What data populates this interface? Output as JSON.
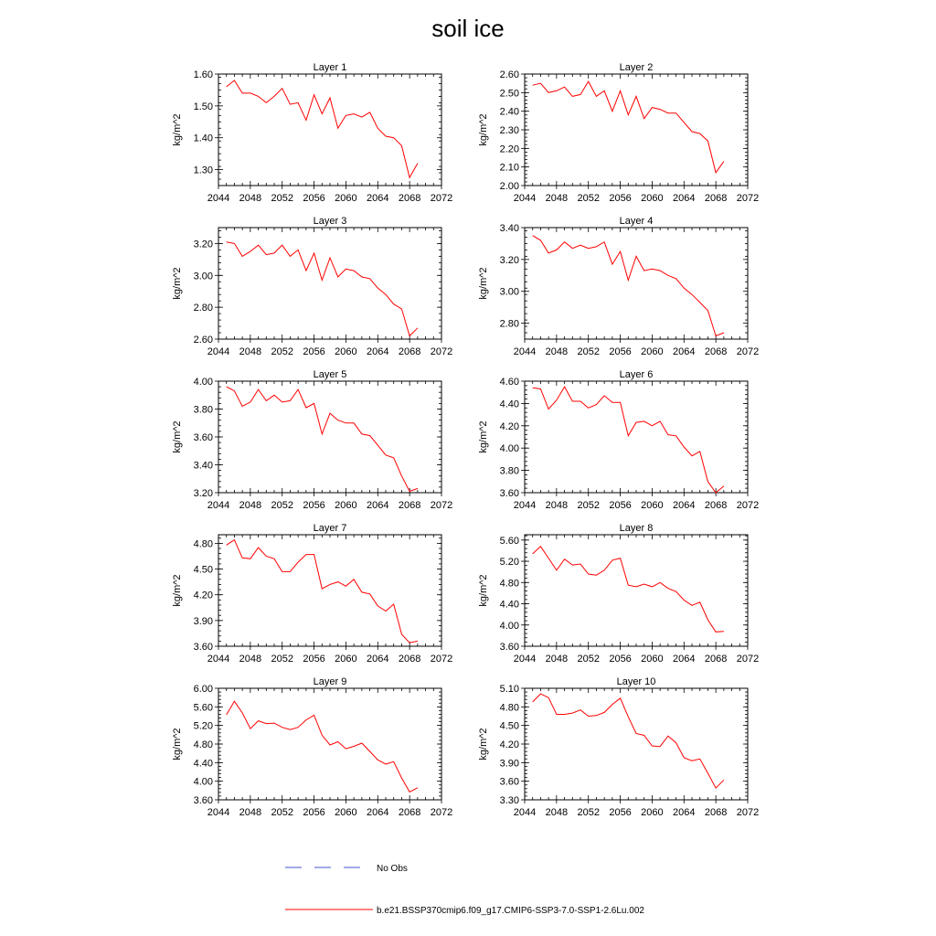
{
  "figure": {
    "title": "soil ice"
  },
  "legend": {
    "entries": [
      {
        "label": "No Obs",
        "color": "#4455cc",
        "style": "dashed"
      },
      {
        "label": "b.e21.BSSP370cmip6.f09_g17.CMIP6-SSP3-7.0-SSP1-2.6Lu.002",
        "color": "#ff0000",
        "style": "solid"
      }
    ]
  },
  "chart_data": [
    {
      "type": "line",
      "title": "Layer 1",
      "ylabel": "kg/m^2",
      "xlim": [
        2044,
        2072
      ],
      "ylim": [
        1.25,
        1.6
      ],
      "xticks": [
        "2044",
        "2048",
        "2052",
        "2056",
        "2060",
        "2064",
        "2068",
        "2072"
      ],
      "yticks": [
        "1.30",
        "1.40",
        "1.50",
        "1.60"
      ],
      "x": [
        2045,
        2046,
        2047,
        2048,
        2049,
        2050,
        2051,
        2052,
        2053,
        2054,
        2055,
        2056,
        2057,
        2058,
        2059,
        2060,
        2061,
        2062,
        2063,
        2064,
        2065,
        2066,
        2067,
        2068,
        2069
      ],
      "series": [
        {
          "values": [
            1.56,
            1.58,
            1.54,
            1.54,
            1.53,
            1.51,
            1.53,
            1.555,
            1.505,
            1.51,
            1.455,
            1.535,
            1.475,
            1.525,
            1.43,
            1.47,
            1.475,
            1.465,
            1.48,
            1.43,
            1.405,
            1.4,
            1.375,
            1.275,
            1.32
          ]
        }
      ]
    },
    {
      "type": "line",
      "title": "Layer 2",
      "ylabel": "kg/m^2",
      "xlim": [
        2044,
        2072
      ],
      "ylim": [
        2.0,
        2.6
      ],
      "xticks": [
        "2044",
        "2048",
        "2052",
        "2056",
        "2060",
        "2064",
        "2068",
        "2072"
      ],
      "yticks": [
        "2.00",
        "2.10",
        "2.20",
        "2.30",
        "2.40",
        "2.50",
        "2.60"
      ],
      "x": [
        2045,
        2046,
        2047,
        2048,
        2049,
        2050,
        2051,
        2052,
        2053,
        2054,
        2055,
        2056,
        2057,
        2058,
        2059,
        2060,
        2061,
        2062,
        2063,
        2064,
        2065,
        2066,
        2067,
        2068,
        2069
      ],
      "series": [
        {
          "values": [
            2.54,
            2.55,
            2.5,
            2.51,
            2.53,
            2.48,
            2.49,
            2.56,
            2.48,
            2.51,
            2.4,
            2.51,
            2.38,
            2.48,
            2.36,
            2.42,
            2.41,
            2.39,
            2.39,
            2.34,
            2.29,
            2.28,
            2.24,
            2.07,
            2.13
          ]
        }
      ]
    },
    {
      "type": "line",
      "title": "Layer 3",
      "ylabel": "kg/m^2",
      "xlim": [
        2044,
        2072
      ],
      "ylim": [
        2.6,
        3.3
      ],
      "xticks": [
        "2044",
        "2048",
        "2052",
        "2056",
        "2060",
        "2064",
        "2068",
        "2072"
      ],
      "yticks": [
        "2.60",
        "2.80",
        "3.00",
        "3.20"
      ],
      "x": [
        2045,
        2046,
        2047,
        2048,
        2049,
        2050,
        2051,
        2052,
        2053,
        2054,
        2055,
        2056,
        2057,
        2058,
        2059,
        2060,
        2061,
        2062,
        2063,
        2064,
        2065,
        2066,
        2067,
        2068,
        2069
      ],
      "series": [
        {
          "values": [
            3.21,
            3.2,
            3.12,
            3.15,
            3.19,
            3.13,
            3.14,
            3.19,
            3.12,
            3.16,
            3.03,
            3.14,
            2.97,
            3.11,
            2.99,
            3.04,
            3.03,
            2.99,
            2.98,
            2.92,
            2.88,
            2.82,
            2.79,
            2.62,
            2.67
          ]
        }
      ]
    },
    {
      "type": "line",
      "title": "Layer 4",
      "ylabel": "kg/m^2",
      "xlim": [
        2044,
        2072
      ],
      "ylim": [
        2.7,
        3.4
      ],
      "xticks": [
        "2044",
        "2048",
        "2052",
        "2056",
        "2060",
        "2064",
        "2068",
        "2072"
      ],
      "yticks": [
        "2.80",
        "3.00",
        "3.20",
        "3.40"
      ],
      "x": [
        2045,
        2046,
        2047,
        2048,
        2049,
        2050,
        2051,
        2052,
        2053,
        2054,
        2055,
        2056,
        2057,
        2058,
        2059,
        2060,
        2061,
        2062,
        2063,
        2064,
        2065,
        2066,
        2067,
        2068,
        2069
      ],
      "series": [
        {
          "values": [
            3.35,
            3.32,
            3.24,
            3.26,
            3.31,
            3.27,
            3.29,
            3.27,
            3.28,
            3.31,
            3.17,
            3.25,
            3.07,
            3.22,
            3.13,
            3.14,
            3.13,
            3.1,
            3.08,
            3.02,
            2.98,
            2.93,
            2.88,
            2.72,
            2.74
          ]
        }
      ]
    },
    {
      "type": "line",
      "title": "Layer 5",
      "ylabel": "kg/m^2",
      "xlim": [
        2044,
        2072
      ],
      "ylim": [
        3.2,
        4.0
      ],
      "xticks": [
        "2044",
        "2048",
        "2052",
        "2056",
        "2060",
        "2064",
        "2068",
        "2072"
      ],
      "yticks": [
        "3.20",
        "3.40",
        "3.60",
        "3.80",
        "4.00"
      ],
      "x": [
        2045,
        2046,
        2047,
        2048,
        2049,
        2050,
        2051,
        2052,
        2053,
        2054,
        2055,
        2056,
        2057,
        2058,
        2059,
        2060,
        2061,
        2062,
        2063,
        2064,
        2065,
        2066,
        2067,
        2068,
        2069
      ],
      "series": [
        {
          "values": [
            3.96,
            3.93,
            3.82,
            3.85,
            3.94,
            3.86,
            3.9,
            3.85,
            3.86,
            3.94,
            3.81,
            3.84,
            3.62,
            3.77,
            3.72,
            3.7,
            3.7,
            3.62,
            3.61,
            3.54,
            3.47,
            3.45,
            3.32,
            3.21,
            3.23
          ]
        }
      ]
    },
    {
      "type": "line",
      "title": "Layer 6",
      "ylabel": "kg/m^2",
      "xlim": [
        2044,
        2072
      ],
      "ylim": [
        3.6,
        4.6
      ],
      "xticks": [
        "2044",
        "2048",
        "2052",
        "2056",
        "2060",
        "2064",
        "2068",
        "2072"
      ],
      "yticks": [
        "3.60",
        "3.80",
        "4.00",
        "4.20",
        "4.40",
        "4.60"
      ],
      "x": [
        2045,
        2046,
        2047,
        2048,
        2049,
        2050,
        2051,
        2052,
        2053,
        2054,
        2055,
        2056,
        2057,
        2058,
        2059,
        2060,
        2061,
        2062,
        2063,
        2064,
        2065,
        2066,
        2067,
        2068,
        2069
      ],
      "series": [
        {
          "values": [
            4.54,
            4.53,
            4.35,
            4.43,
            4.55,
            4.42,
            4.42,
            4.36,
            4.39,
            4.47,
            4.41,
            4.41,
            4.11,
            4.23,
            4.24,
            4.2,
            4.24,
            4.12,
            4.11,
            4.01,
            3.93,
            3.97,
            3.7,
            3.6,
            3.66
          ]
        }
      ]
    },
    {
      "type": "line",
      "title": "Layer 7",
      "ylabel": "kg/m^2",
      "xlim": [
        2044,
        2072
      ],
      "ylim": [
        3.6,
        4.9
      ],
      "xticks": [
        "2044",
        "2048",
        "2052",
        "2056",
        "2060",
        "2064",
        "2068",
        "2072"
      ],
      "yticks": [
        "3.60",
        "3.90",
        "4.20",
        "4.50",
        "4.80"
      ],
      "x": [
        2045,
        2046,
        2047,
        2048,
        2049,
        2050,
        2051,
        2052,
        2053,
        2054,
        2055,
        2056,
        2057,
        2058,
        2059,
        2060,
        2061,
        2062,
        2063,
        2064,
        2065,
        2066,
        2067,
        2068,
        2069
      ],
      "series": [
        {
          "values": [
            4.78,
            4.84,
            4.63,
            4.62,
            4.75,
            4.65,
            4.62,
            4.47,
            4.47,
            4.58,
            4.67,
            4.67,
            4.27,
            4.32,
            4.35,
            4.3,
            4.38,
            4.23,
            4.21,
            4.07,
            4.01,
            4.09,
            3.74,
            3.64,
            3.66
          ]
        }
      ]
    },
    {
      "type": "line",
      "title": "Layer 8",
      "ylabel": "kg/m^2",
      "xlim": [
        2044,
        2072
      ],
      "ylim": [
        3.6,
        5.7
      ],
      "xticks": [
        "2044",
        "2048",
        "2052",
        "2056",
        "2060",
        "2064",
        "2068",
        "2072"
      ],
      "yticks": [
        "3.60",
        "4.00",
        "4.40",
        "4.80",
        "5.20",
        "5.60"
      ],
      "x": [
        2045,
        2046,
        2047,
        2048,
        2049,
        2050,
        2051,
        2052,
        2053,
        2054,
        2055,
        2056,
        2057,
        2058,
        2059,
        2060,
        2061,
        2062,
        2063,
        2064,
        2065,
        2066,
        2067,
        2068,
        2069
      ],
      "series": [
        {
          "values": [
            5.34,
            5.48,
            5.26,
            5.03,
            5.24,
            5.13,
            5.15,
            4.96,
            4.94,
            5.03,
            5.22,
            5.26,
            4.75,
            4.72,
            4.77,
            4.72,
            4.8,
            4.69,
            4.63,
            4.47,
            4.37,
            4.43,
            4.1,
            3.87,
            3.88
          ]
        }
      ]
    },
    {
      "type": "line",
      "title": "Layer 9",
      "ylabel": "kg/m^2",
      "xlim": [
        2044,
        2072
      ],
      "ylim": [
        3.6,
        6.0
      ],
      "xticks": [
        "2044",
        "2048",
        "2052",
        "2056",
        "2060",
        "2064",
        "2068",
        "2072"
      ],
      "yticks": [
        "3.60",
        "4.00",
        "4.40",
        "4.80",
        "5.20",
        "5.60",
        "6.00"
      ],
      "x": [
        2045,
        2046,
        2047,
        2048,
        2049,
        2050,
        2051,
        2052,
        2053,
        2054,
        2055,
        2056,
        2057,
        2058,
        2059,
        2060,
        2061,
        2062,
        2063,
        2064,
        2065,
        2066,
        2067,
        2068,
        2069
      ],
      "series": [
        {
          "values": [
            5.43,
            5.72,
            5.47,
            5.13,
            5.3,
            5.24,
            5.25,
            5.16,
            5.11,
            5.16,
            5.32,
            5.42,
            4.99,
            4.78,
            4.85,
            4.7,
            4.75,
            4.82,
            4.64,
            4.46,
            4.37,
            4.42,
            4.07,
            3.77,
            3.86
          ]
        }
      ]
    },
    {
      "type": "line",
      "title": "Layer 10",
      "ylabel": "kg/m^2",
      "xlim": [
        2044,
        2072
      ],
      "ylim": [
        3.3,
        5.1
      ],
      "xticks": [
        "2044",
        "2048",
        "2052",
        "2056",
        "2060",
        "2064",
        "2068",
        "2072"
      ],
      "yticks": [
        "3.30",
        "3.60",
        "3.90",
        "4.20",
        "4.50",
        "4.80",
        "5.10"
      ],
      "x": [
        2045,
        2046,
        2047,
        2048,
        2049,
        2050,
        2051,
        2052,
        2053,
        2054,
        2055,
        2056,
        2057,
        2058,
        2059,
        2060,
        2061,
        2062,
        2063,
        2064,
        2065,
        2066,
        2067,
        2068,
        2069
      ],
      "series": [
        {
          "values": [
            4.88,
            5.01,
            4.95,
            4.68,
            4.68,
            4.7,
            4.75,
            4.65,
            4.66,
            4.71,
            4.84,
            4.94,
            4.64,
            4.37,
            4.34,
            4.17,
            4.16,
            4.33,
            4.22,
            3.98,
            3.93,
            3.96,
            3.73,
            3.49,
            3.62
          ]
        }
      ]
    }
  ]
}
